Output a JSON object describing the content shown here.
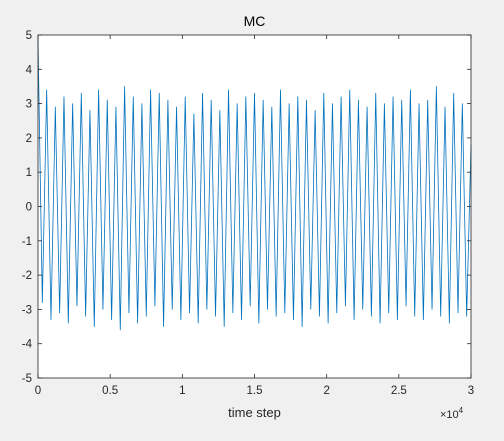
{
  "chart_data": {
    "type": "line",
    "title": "MC",
    "xlabel": "time step",
    "ylabel": "",
    "xlim": [
      0,
      30000
    ],
    "ylim": [
      -5,
      5
    ],
    "x_tick_values": [
      0,
      5000,
      10000,
      15000,
      20000,
      25000,
      30000
    ],
    "x_tick_labels": [
      "0",
      "0.5",
      "1",
      "1.5",
      "2",
      "2.5",
      "3"
    ],
    "x_exponent_label": "×10",
    "x_exponent_power": "4",
    "y_tick_values": [
      -5,
      -4,
      -3,
      -2,
      -1,
      0,
      1,
      2,
      3,
      4,
      5
    ],
    "y_tick_labels": [
      "-5",
      "-4",
      "-3",
      "-2",
      "-1",
      "0",
      "1",
      "2",
      "3",
      "4",
      "5"
    ],
    "grid": false,
    "series_color": "#0072BD",
    "series": [
      {
        "x": [
          0,
          300,
          600,
          900,
          1200,
          1500,
          1800,
          2100,
          2400,
          2700,
          3000,
          3300,
          3600,
          3900,
          4200,
          4500,
          4800,
          5100,
          5400,
          5700,
          6000,
          6300,
          6600,
          6900,
          7200,
          7500,
          7800,
          8100,
          8400,
          8700,
          9000,
          9300,
          9600,
          9900,
          10200,
          10500,
          10800,
          11100,
          11400,
          11700,
          12000,
          12300,
          12600,
          12900,
          13200,
          13500,
          13800,
          14100,
          14400,
          14700,
          15000,
          15300,
          15600,
          15900,
          16200,
          16500,
          16800,
          17100,
          17400,
          17700,
          18000,
          18300,
          18600,
          18900,
          19200,
          19500,
          19800,
          20100,
          20400,
          20700,
          21000,
          21300,
          21600,
          21900,
          22200,
          22500,
          22800,
          23100,
          23400,
          23700,
          24000,
          24300,
          24600,
          24900,
          25200,
          25500,
          25800,
          26100,
          26400,
          26700,
          27000,
          27300,
          27600,
          27900,
          28200,
          28500,
          28800,
          29100,
          29400,
          29700,
          30000
        ],
        "values": [
          4.9,
          -2.8,
          3.4,
          -3.3,
          2.9,
          -3.1,
          3.2,
          -3.4,
          3.0,
          -2.9,
          3.3,
          -3.2,
          2.8,
          -3.5,
          3.4,
          -3.0,
          3.1,
          -3.3,
          2.9,
          -3.6,
          3.5,
          -3.1,
          3.2,
          -3.4,
          3.0,
          -3.2,
          3.4,
          -2.9,
          3.3,
          -3.5,
          3.1,
          -3.0,
          2.9,
          -3.3,
          3.2,
          -3.1,
          2.7,
          -3.4,
          3.3,
          -3.0,
          3.1,
          -3.2,
          2.8,
          -3.5,
          3.4,
          -3.1,
          3.0,
          -3.3,
          3.2,
          -2.9,
          3.3,
          -3.4,
          3.1,
          -3.0,
          2.9,
          -3.2,
          3.4,
          -3.1,
          3.0,
          -3.3,
          3.2,
          -3.5,
          3.1,
          -3.0,
          2.8,
          -3.2,
          3.3,
          -3.4,
          3.0,
          -3.1,
          3.2,
          -2.9,
          3.4,
          -3.3,
          3.1,
          -3.0,
          2.9,
          -3.2,
          3.3,
          -3.4,
          3.0,
          -3.1,
          3.2,
          -3.3,
          3.1,
          -2.9,
          3.4,
          -3.2,
          3.0,
          -3.3,
          3.1,
          -3.0,
          3.5,
          -3.2,
          2.9,
          -3.4,
          3.3,
          -3.1,
          3.0,
          -3.2,
          1.8
        ]
      }
    ]
  }
}
